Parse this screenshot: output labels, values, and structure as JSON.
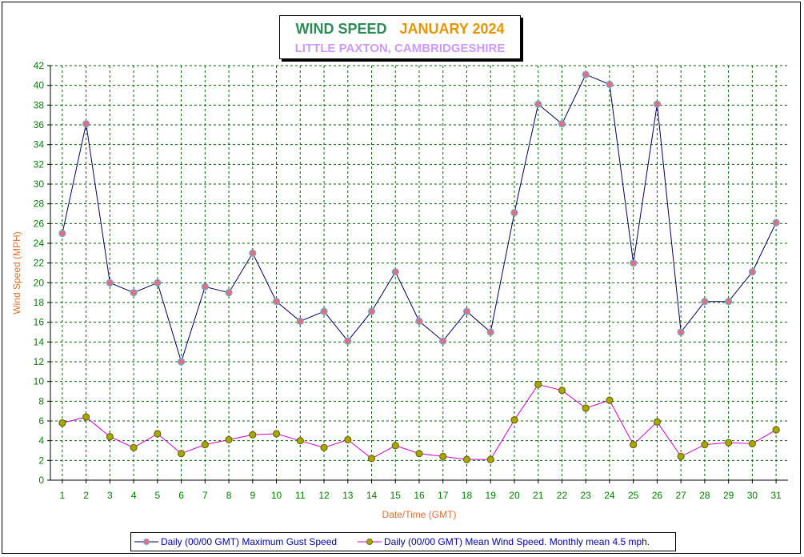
{
  "title": {
    "main": "WIND SPEED",
    "month": "JANUARY 2024",
    "location": "LITTLE PAXTON, CAMBRIDGESHIRE"
  },
  "colors": {
    "gust_line": "#00005a",
    "mean_line": "#cc00cc",
    "gust_marker": "#e0707a",
    "gust_marker_stroke": "#6fa8d8",
    "mean_marker": "#a8a800",
    "mean_marker_stroke": "#6a6a00",
    "grid": "#006400",
    "tick_labels": "#008000",
    "axis_titles": "#e07030",
    "legend_text": "#0000aa"
  },
  "chart_data": {
    "type": "line",
    "xlabel": "Date/Time (GMT)",
    "ylabel": "Wind Speed (MPH)",
    "x": [
      1,
      2,
      3,
      4,
      5,
      6,
      7,
      8,
      9,
      10,
      11,
      12,
      13,
      14,
      15,
      16,
      17,
      18,
      19,
      20,
      21,
      22,
      23,
      24,
      25,
      26,
      27,
      28,
      29,
      30,
      31
    ],
    "ylim": [
      0,
      42
    ],
    "ytick_step": 2,
    "grid": true,
    "legend_position": "bottom",
    "series": [
      {
        "name": "Daily (00/00 GMT) Maximum Gust Speed",
        "values": [
          25,
          36.1,
          20,
          19,
          20,
          12,
          19.6,
          19,
          23,
          18.1,
          16.1,
          17.1,
          14.1,
          17.1,
          21.1,
          16.1,
          14.1,
          17.1,
          15,
          27.1,
          38.1,
          36.1,
          41.1,
          40.1,
          22,
          38.1,
          15,
          18.1,
          18.1,
          21.1,
          26.1
        ]
      },
      {
        "name": "Daily (00/00 GMT) Mean Wind Speed. Monthly mean 4.5 mph.",
        "values": [
          5.8,
          6.4,
          4.4,
          3.3,
          4.7,
          2.7,
          3.6,
          4.1,
          4.6,
          4.7,
          4.0,
          3.3,
          4.1,
          2.2,
          3.5,
          2.7,
          2.4,
          2.1,
          2.1,
          6.1,
          9.7,
          9.1,
          7.3,
          8.1,
          3.6,
          5.9,
          2.4,
          3.6,
          3.8,
          3.7,
          5.1
        ]
      }
    ]
  }
}
